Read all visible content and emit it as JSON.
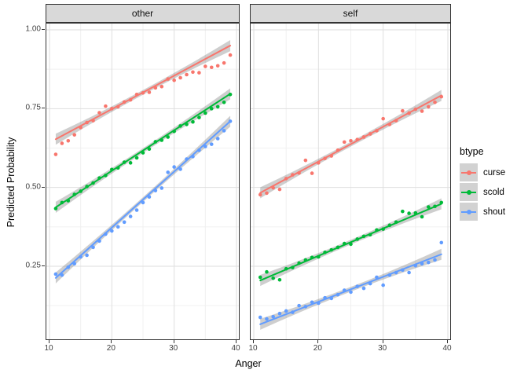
{
  "chart_data": {
    "type": "scatter",
    "title": "",
    "xlabel": "Anger",
    "ylabel": "Predicted Probability",
    "grid": true,
    "x_tick_values": [
      10,
      20,
      30,
      40
    ],
    "x_tick_labels": [
      "10",
      "20",
      "30",
      "40"
    ],
    "x_minor_values": [
      15,
      25,
      35
    ],
    "y_tick_values": [
      1.0,
      0.75,
      0.5,
      0.25
    ],
    "y_tick_labels": [
      "1.00",
      "0.75",
      "0.50",
      "0.25"
    ],
    "y_minor_values": [
      0.875,
      0.625,
      0.375,
      0.125
    ],
    "xlim": [
      9.6,
      40.6
    ],
    "ylim": [
      0.013,
      1.02
    ],
    "x_points": [
      11,
      12,
      13,
      14,
      15,
      16,
      17,
      18,
      19,
      20,
      21,
      22,
      23,
      24,
      25,
      26,
      27,
      28,
      29,
      30,
      31,
      32,
      33,
      34,
      35,
      36,
      37,
      38,
      39
    ],
    "facets": [
      {
        "label": "other",
        "series": [
          {
            "name": "curse",
            "color": "#F8766D",
            "fit_line": {
              "x": [
                11,
                39
              ],
              "y": [
                0.653,
                0.95
              ]
            },
            "points_y": [
              0.605,
              0.64,
              0.648,
              0.667,
              0.69,
              0.706,
              0.712,
              0.737,
              0.758,
              0.75,
              0.756,
              0.771,
              0.778,
              0.795,
              0.8,
              0.802,
              0.816,
              0.82,
              0.844,
              0.84,
              0.848,
              0.858,
              0.866,
              0.864,
              0.884,
              0.881,
              0.886,
              0.895,
              0.92
            ]
          },
          {
            "name": "scold",
            "color": "#00BA38",
            "fit_line": {
              "x": [
                11,
                39
              ],
              "y": [
                0.437,
                0.797
              ]
            },
            "points_y": [
              0.433,
              0.452,
              0.458,
              0.478,
              0.488,
              0.503,
              0.514,
              0.53,
              0.538,
              0.557,
              0.562,
              0.58,
              0.578,
              0.594,
              0.61,
              0.622,
              0.645,
              0.65,
              0.66,
              0.678,
              0.695,
              0.7,
              0.708,
              0.722,
              0.736,
              0.75,
              0.756,
              0.77,
              0.795
            ]
          },
          {
            "name": "shout",
            "color": "#619CFF",
            "fit_line": {
              "x": [
                11,
                39
              ],
              "y": [
                0.213,
                0.71
              ]
            },
            "points_y": [
              0.225,
              0.222,
              0.247,
              0.258,
              0.28,
              0.285,
              0.31,
              0.33,
              0.352,
              0.362,
              0.375,
              0.39,
              0.408,
              0.428,
              0.452,
              0.47,
              0.49,
              0.498,
              0.548,
              0.565,
              0.558,
              0.59,
              0.598,
              0.618,
              0.63,
              0.637,
              0.655,
              0.68,
              0.71
            ]
          }
        ]
      },
      {
        "label": "self",
        "series": [
          {
            "name": "curse",
            "color": "#F8766D",
            "fit_line": {
              "x": [
                11,
                39
              ],
              "y": [
                0.483,
                0.792
              ]
            },
            "points_y": [
              0.477,
              0.482,
              0.499,
              0.494,
              0.528,
              0.54,
              0.546,
              0.586,
              0.545,
              0.578,
              0.592,
              0.6,
              0.618,
              0.644,
              0.648,
              0.652,
              0.66,
              0.67,
              0.68,
              0.718,
              0.7,
              0.712,
              0.743,
              0.736,
              0.748,
              0.742,
              0.756,
              0.77,
              0.788
            ]
          },
          {
            "name": "scold",
            "color": "#00BA38",
            "fit_line": {
              "x": [
                11,
                39
              ],
              "y": [
                0.205,
                0.448
              ]
            },
            "points_y": [
              0.215,
              0.232,
              0.212,
              0.207,
              0.242,
              0.246,
              0.26,
              0.27,
              0.278,
              0.28,
              0.294,
              0.302,
              0.31,
              0.322,
              0.32,
              0.336,
              0.345,
              0.35,
              0.365,
              0.368,
              0.38,
              0.39,
              0.424,
              0.418,
              0.419,
              0.407,
              0.438,
              0.44,
              0.452
            ]
          },
          {
            "name": "shout",
            "color": "#619CFF",
            "fit_line": {
              "x": [
                11,
                39
              ],
              "y": [
                0.066,
                0.288
              ]
            },
            "points_y": [
              0.088,
              0.083,
              0.09,
              0.1,
              0.108,
              0.104,
              0.125,
              0.122,
              0.136,
              0.133,
              0.15,
              0.148,
              0.16,
              0.174,
              0.168,
              0.186,
              0.18,
              0.195,
              0.215,
              0.19,
              0.222,
              0.23,
              0.238,
              0.23,
              0.252,
              0.258,
              0.262,
              0.27,
              0.325
            ]
          }
        ]
      }
    ],
    "legend": {
      "title": "btype",
      "position": "right",
      "entries": [
        {
          "label": "curse",
          "color": "#F8766D"
        },
        {
          "label": "scold",
          "color": "#00BA38"
        },
        {
          "label": "shout",
          "color": "#619CFF"
        }
      ]
    },
    "style_colors": {
      "ribbon": "#7F7F7F",
      "strip_fill": "#D9D9D9",
      "panel_border": "#333333",
      "grid_major": "#DEDEDE",
      "grid_minor": "#F0F0F0",
      "tick_text": "#404040"
    }
  }
}
